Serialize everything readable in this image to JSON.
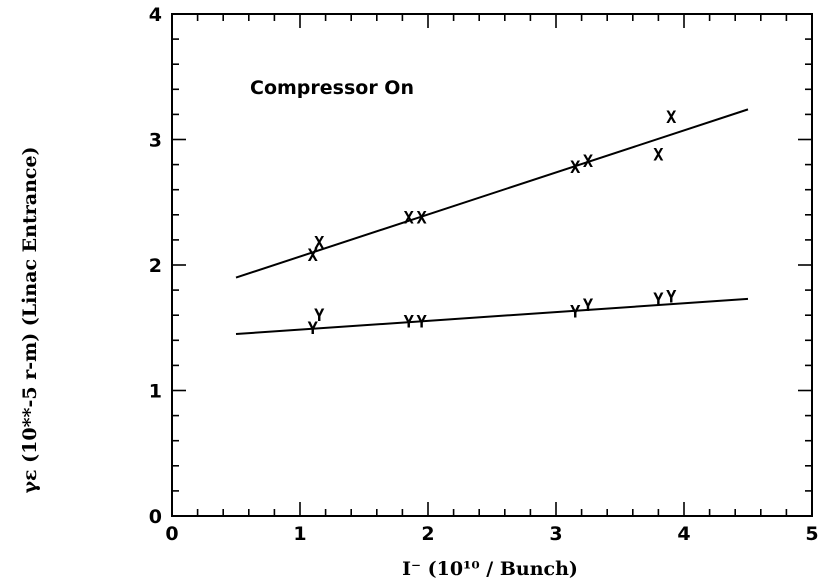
{
  "chart_data": {
    "type": "scatter",
    "title": "",
    "xlabel": "I⁻  (10¹⁰ / Bunch)",
    "ylabel": "γε  (10**-5 r-m) (Linac Entrance)",
    "xlim": [
      0,
      5
    ],
    "ylim": [
      0,
      4
    ],
    "xticks": [
      0,
      1,
      2,
      3,
      4,
      5
    ],
    "yticks": [
      0,
      1,
      2,
      3,
      4
    ],
    "xtick_labels": [
      "0",
      "1",
      "2",
      "3",
      "4",
      "5"
    ],
    "ytick_labels": [
      "0",
      "1",
      "2",
      "3",
      "4"
    ],
    "grid": false,
    "annotation": "Compressor On",
    "series": [
      {
        "name": "X",
        "marker": "X",
        "points": [
          {
            "x": 1.1,
            "y": 2.08
          },
          {
            "x": 1.15,
            "y": 2.18
          },
          {
            "x": 1.85,
            "y": 2.38
          },
          {
            "x": 1.95,
            "y": 2.38
          },
          {
            "x": 3.15,
            "y": 2.78
          },
          {
            "x": 3.25,
            "y": 2.83
          },
          {
            "x": 3.8,
            "y": 2.88
          },
          {
            "x": 3.9,
            "y": 3.18
          }
        ],
        "fit": {
          "x": [
            0.5,
            4.5
          ],
          "y": [
            1.9,
            3.24
          ]
        }
      },
      {
        "name": "Y",
        "marker": "Y",
        "points": [
          {
            "x": 1.1,
            "y": 1.5
          },
          {
            "x": 1.15,
            "y": 1.6
          },
          {
            "x": 1.85,
            "y": 1.55
          },
          {
            "x": 1.95,
            "y": 1.55
          },
          {
            "x": 3.15,
            "y": 1.63
          },
          {
            "x": 3.25,
            "y": 1.68
          },
          {
            "x": 3.8,
            "y": 1.73
          },
          {
            "x": 3.9,
            "y": 1.75
          }
        ],
        "fit": {
          "x": [
            0.5,
            4.5
          ],
          "y": [
            1.45,
            1.73
          ]
        }
      }
    ]
  }
}
